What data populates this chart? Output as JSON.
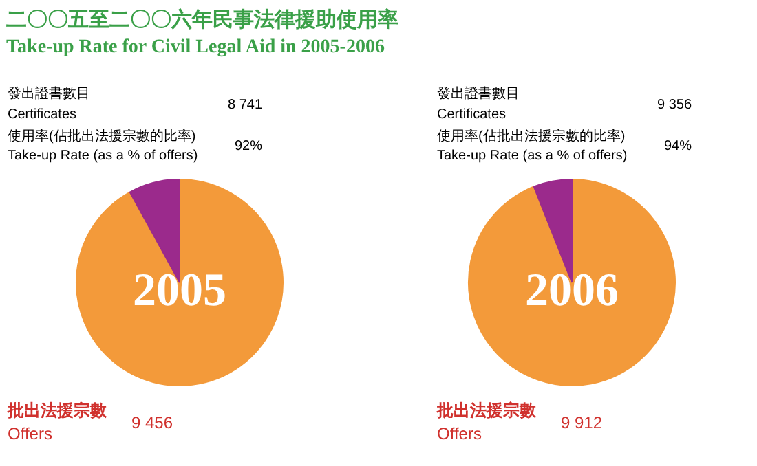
{
  "chart_data": [
    {
      "type": "pie",
      "title": "二〇〇五至二〇〇六年民事法律援助使用率",
      "subtitle": "Take-up Rate for Civil Legal Aid in 2005-2006",
      "categories": [
        null,
        null
      ],
      "values": [
        92,
        8
      ],
      "colors": [
        "#f39a3a",
        "#9b2a8c"
      ],
      "annotations": [
        "發出證書數目",
        "Certificates",
        "8 741",
        "使用率(佔批出法援宗數的比率)",
        "Take-up Rate (as a % of offers)",
        "92%",
        "2005",
        "批出法援宗數",
        "Offers",
        "9 456"
      ]
    },
    {
      "type": "pie",
      "categories": [
        null,
        null
      ],
      "values": [
        94,
        6
      ],
      "colors": [
        "#f39a3a",
        "#9b2a8c"
      ],
      "annotations": [
        "發出證書數目",
        "Certificates",
        "9 356",
        "使用率(佔批出法援宗數的比率)",
        "Take-up Rate (as a % of offers)",
        "94%",
        "2006",
        "批出法援宗數",
        "Offers",
        "9 912"
      ]
    }
  ]
}
